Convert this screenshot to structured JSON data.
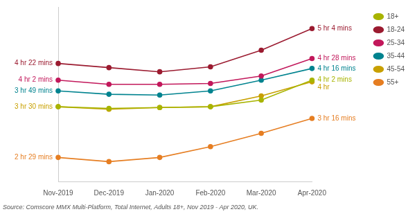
{
  "chart_data": {
    "type": "line",
    "categories": [
      "Nov-2019",
      "Dec-2019",
      "Jan-2020",
      "Feb-2020",
      "Mar-2020",
      "Apr-2020"
    ],
    "series": [
      {
        "name": "18+",
        "color": "#a8b400",
        "values": [
          210,
          208,
          209,
          210,
          218,
          242
        ]
      },
      {
        "name": "18-24",
        "color": "#9b1b30",
        "values": [
          262,
          257,
          252,
          258,
          278,
          304
        ]
      },
      {
        "name": "25-34",
        "color": "#c2185b",
        "values": [
          242,
          237,
          237,
          238,
          247,
          268
        ]
      },
      {
        "name": "35-44",
        "color": "#00838f",
        "values": [
          229,
          225,
          224,
          229,
          242,
          256
        ]
      },
      {
        "name": "45-54",
        "color": "#c8a000",
        "values": [
          210,
          207,
          209,
          210,
          223,
          240
        ]
      },
      {
        "name": "55+",
        "color": "#e67e22",
        "values": [
          149,
          144,
          149,
          162,
          178,
          196
        ]
      }
    ],
    "ylim": [
      120,
      330
    ],
    "tick_labels": "x",
    "grid": false,
    "legend": "right",
    "marker": "circle",
    "annotations": [
      {
        "text": "4 hr 22 mins",
        "series": "18-24",
        "x": "Nov-2019",
        "y": 262
      },
      {
        "text": "4 hr 2 mins",
        "series": "25-34",
        "x": "Nov-2019",
        "y": 242
      },
      {
        "text": "3 hr 49 mins",
        "series": "35-44",
        "x": "Nov-2019",
        "y": 229
      },
      {
        "text": "3 hr 30 mins",
        "series": "45-54",
        "x": "Nov-2019",
        "y": 210
      },
      {
        "text": "2 hr 29 mins",
        "series": "55+",
        "x": "Nov-2019",
        "y": 149
      },
      {
        "text": "5 hr 4 mins",
        "series": "18-24",
        "x": "Apr-2020",
        "y": 304
      },
      {
        "text": "4 hr 28 mins",
        "series": "25-34",
        "x": "Apr-2020",
        "y": 268
      },
      {
        "text": "4 hr 16 mins",
        "series": "35-44",
        "x": "Apr-2020",
        "y": 256
      },
      {
        "text": "4 hr 2 mins",
        "series": "18+",
        "x": "Apr-2020",
        "y": 242
      },
      {
        "text": "4 hr",
        "series": "45-54",
        "x": "Apr-2020",
        "y": 240
      },
      {
        "text": "3 hr 16 mins",
        "series": "55+",
        "x": "Apr-2020",
        "y": 196
      }
    ],
    "source": "Source: Comscore MMX Multi-Platform, Total Internet, Adults 18+, Nov 2019 - Apr 2020, UK."
  }
}
